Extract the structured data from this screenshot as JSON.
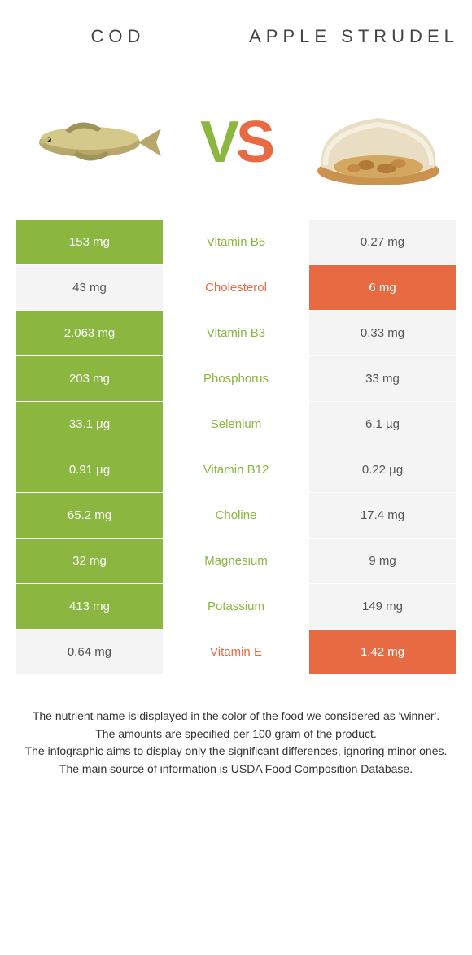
{
  "colors": {
    "green": "#8bb63f",
    "orange": "#e86a43",
    "neutral": "#f4f4f4",
    "text": "#333333",
    "white": "#ffffff"
  },
  "header": {
    "left": "Cod",
    "right": "Apple Strudel"
  },
  "vs": {
    "v": "V",
    "s": "S"
  },
  "rows": [
    {
      "left": "153 mg",
      "label": "Vitamin B5",
      "right": "0.27 mg",
      "winner": "left"
    },
    {
      "left": "43 mg",
      "label": "Cholesterol",
      "right": "6 mg",
      "winner": "right"
    },
    {
      "left": "2.063 mg",
      "label": "Vitamin B3",
      "right": "0.33 mg",
      "winner": "left"
    },
    {
      "left": "203 mg",
      "label": "Phosphorus",
      "right": "33 mg",
      "winner": "left"
    },
    {
      "left": "33.1 µg",
      "label": "Selenium",
      "right": "6.1 µg",
      "winner": "left"
    },
    {
      "left": "0.91 µg",
      "label": "Vitamin B12",
      "right": "0.22 µg",
      "winner": "left"
    },
    {
      "left": "65.2 mg",
      "label": "Choline",
      "right": "17.4 mg",
      "winner": "left"
    },
    {
      "left": "32 mg",
      "label": "Magnesium",
      "right": "9 mg",
      "winner": "left"
    },
    {
      "left": "413 mg",
      "label": "Potassium",
      "right": "149 mg",
      "winner": "left"
    },
    {
      "left": "0.64 mg",
      "label": "Vitamin E",
      "right": "1.42 mg",
      "winner": "right"
    }
  ],
  "footer": {
    "l1": "The nutrient name is displayed in the color of the food we considered as 'winner'.",
    "l2": "The amounts are specified per 100 gram of the product.",
    "l3": "The infographic aims to display only the significant differences, ignoring minor ones.",
    "l4": "The main source of information is USDA Food Composition Database."
  }
}
